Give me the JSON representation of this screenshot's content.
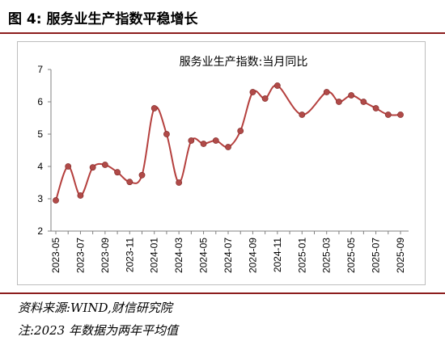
{
  "figure": {
    "title": "图 4:  服务业生产指数平稳增长",
    "source": "资料来源:WIND,财信研究院",
    "note": "注:2023 年数据为两年平均值"
  },
  "colors": {
    "accent": "#8c1d1d",
    "series": "#b5403e",
    "marker": "#b04a48",
    "axis": "#808080",
    "border": "#bdbdbd"
  },
  "chart_data": {
    "type": "line",
    "title": "服务业生产指数:当月同比",
    "xlabel": "",
    "ylabel": "",
    "ylim": [
      2,
      7
    ],
    "yticks": [
      2,
      3,
      4,
      5,
      6,
      7
    ],
    "grid": false,
    "legend": "none",
    "x": [
      "2023-05",
      "2023-06",
      "2023-07",
      "2023-08",
      "2023-09",
      "2023-10",
      "2023-11",
      "2023-12",
      "2024-01",
      "2024-02",
      "2024-03",
      "2024-04",
      "2024-05",
      "2024-06",
      "2024-07",
      "2024-08",
      "2024-09",
      "2024-10",
      "2024-11",
      "2024-12",
      "2025-01",
      "2025-02",
      "2025-03",
      "2025-04",
      "2025-05",
      "2025-06",
      "2025-07",
      "2025-08",
      "2025-09"
    ],
    "xtick_labels": [
      "2023-05",
      "2023-07",
      "2023-09",
      "2023-11",
      "2024-01",
      "2024-03",
      "2024-05",
      "2024-07",
      "2024-09",
      "2024-11",
      "2025-01",
      "2025-03",
      "2025-05",
      "2025-07",
      "2025-09"
    ],
    "series": [
      {
        "name": "",
        "values": [
          2.95,
          4.0,
          3.1,
          3.97,
          4.05,
          3.82,
          3.52,
          3.73,
          5.8,
          5.0,
          3.5,
          4.8,
          4.7,
          4.8,
          4.6,
          5.1,
          6.3,
          6.1,
          6.5,
          null,
          5.6,
          null,
          6.3,
          6.0,
          6.2,
          6.0,
          5.8,
          5.6,
          5.6
        ]
      }
    ]
  }
}
